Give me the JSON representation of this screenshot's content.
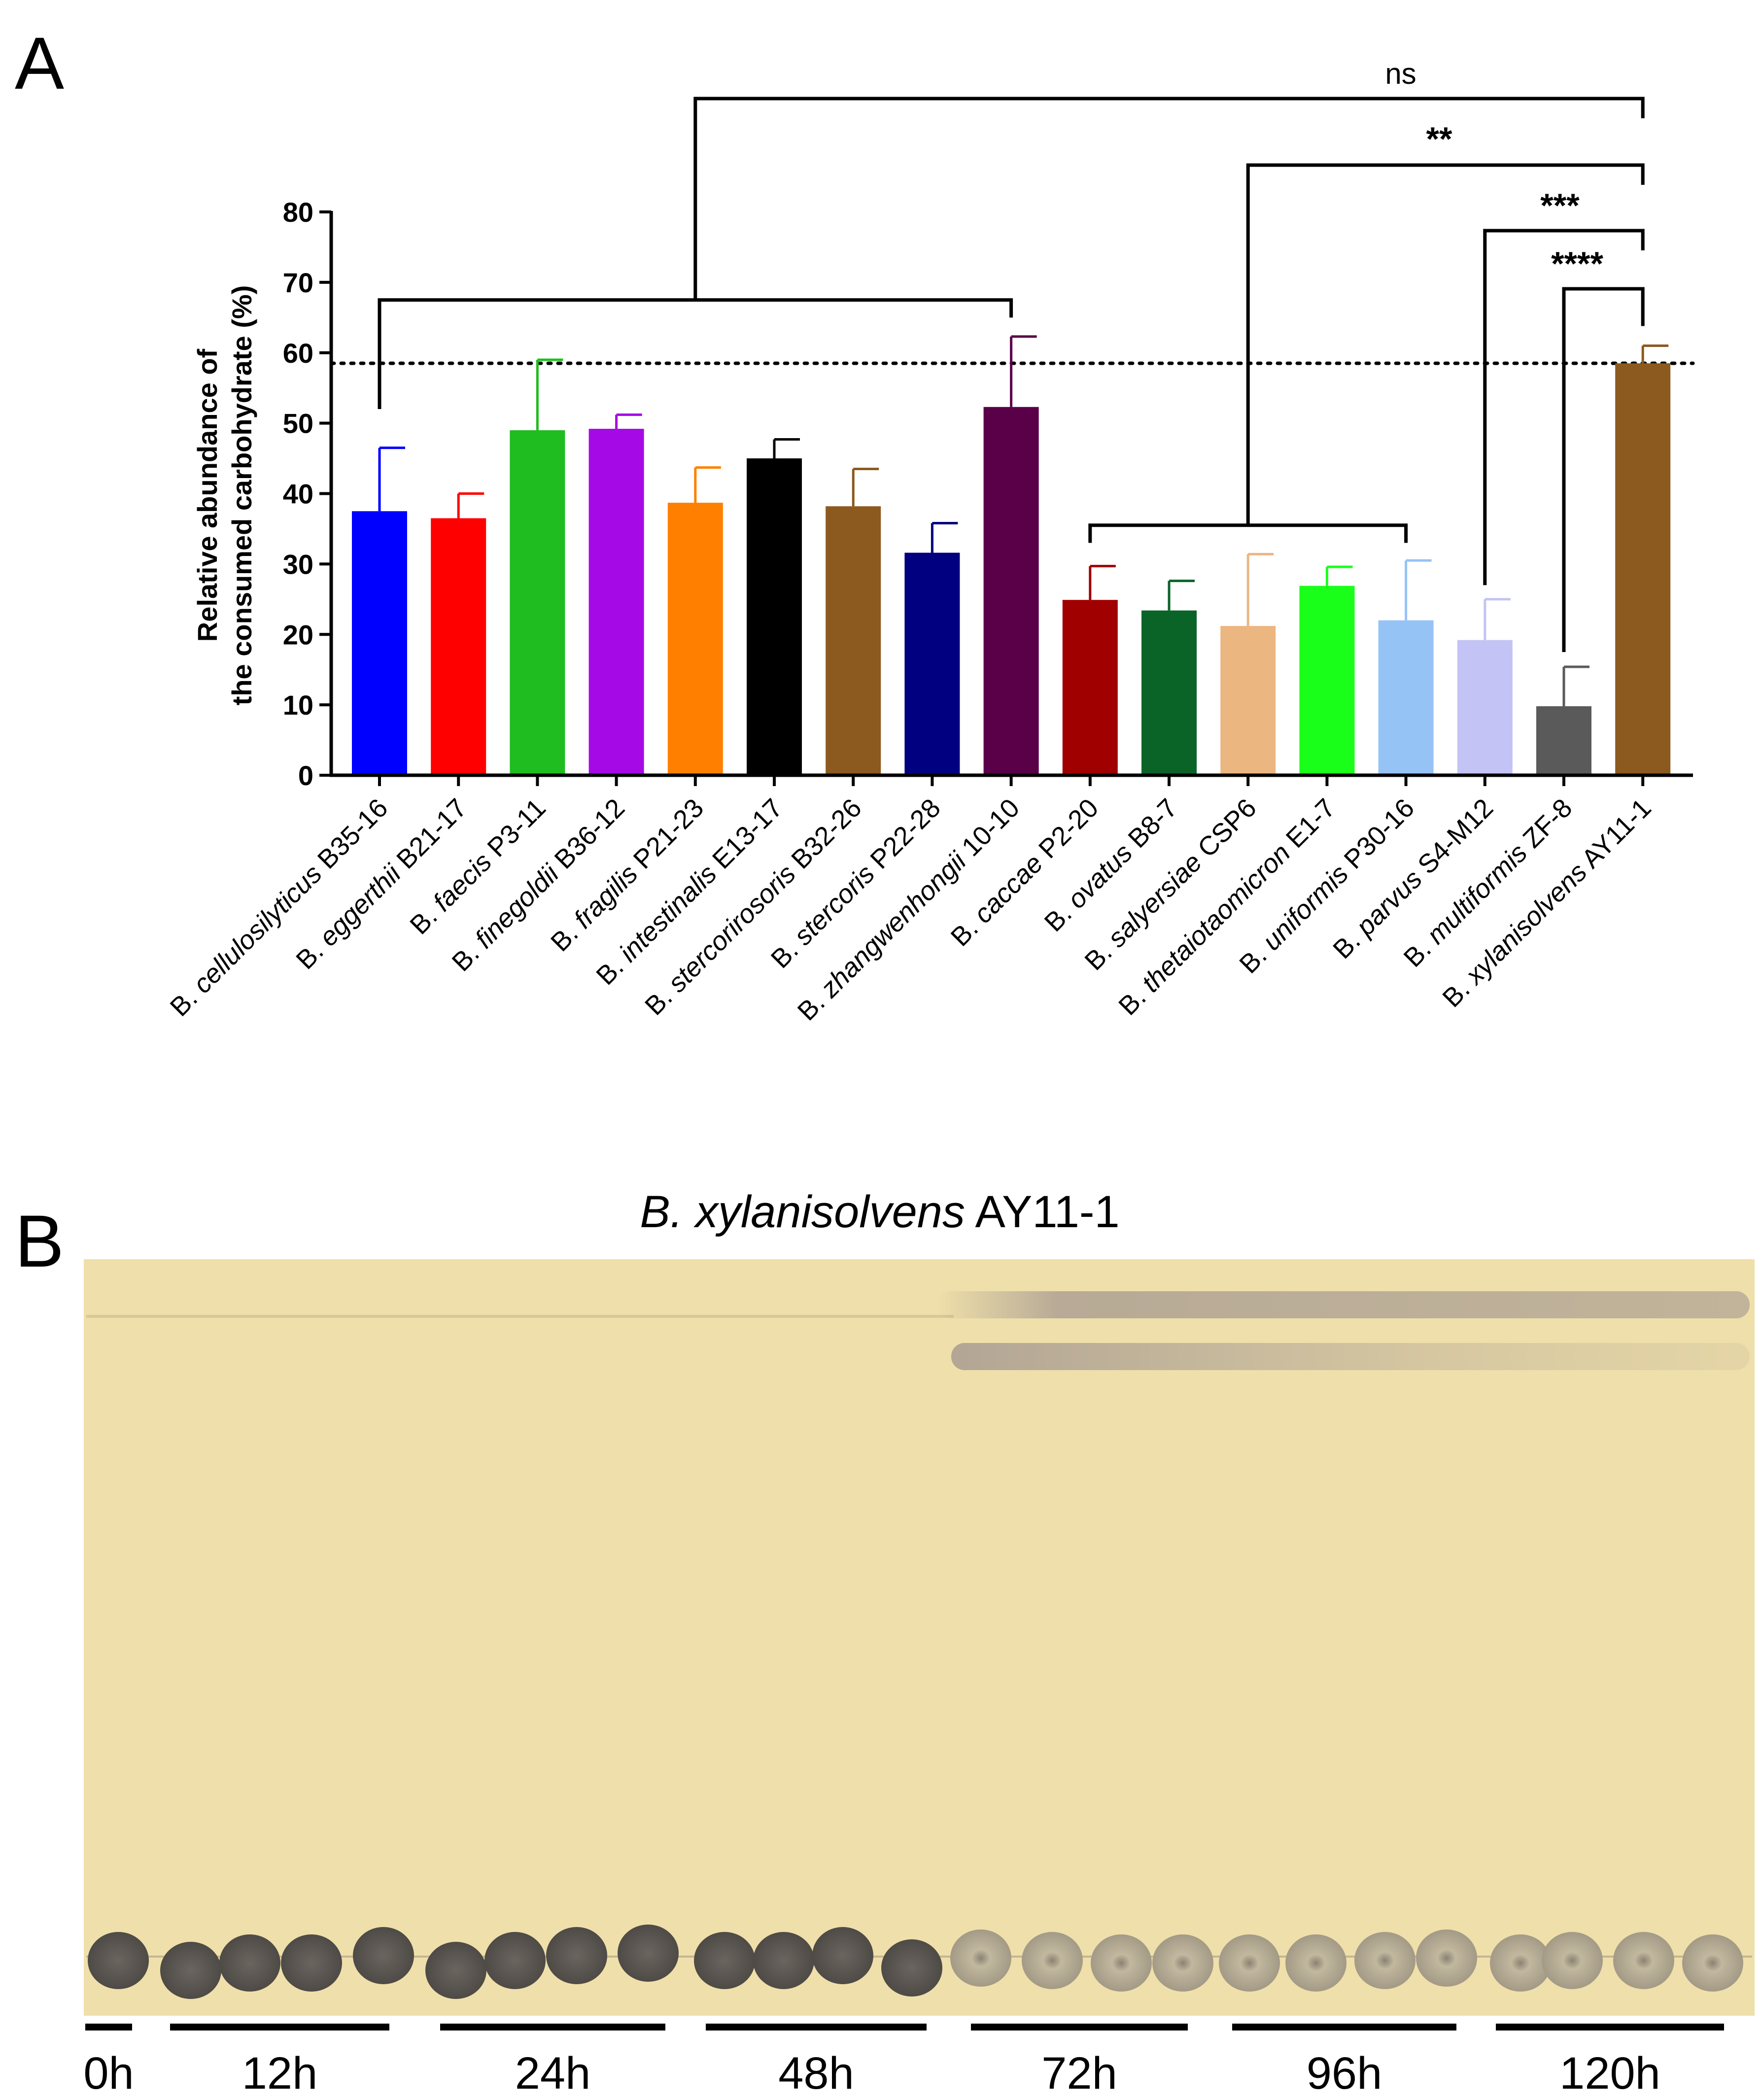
{
  "panels": {
    "a_letter": "A",
    "b_letter": "B"
  },
  "chart_data": {
    "type": "bar",
    "ylabel_line1": "Relative abundance of",
    "ylabel_line2": "the consumed carbohydrate (%)",
    "ylim": [
      0,
      80
    ],
    "yticks": [
      0,
      10,
      20,
      30,
      40,
      50,
      60,
      70,
      80
    ],
    "reference_line": 58.5,
    "categories": [
      {
        "genus": "B.",
        "species": "cellulosilyticus",
        "strain": "B35-16",
        "value": 37.5,
        "error": 9.0,
        "color": "#0000ff"
      },
      {
        "genus": "B.",
        "species": "eggerthii",
        "strain": "B21-17",
        "value": 36.5,
        "error": 3.5,
        "color": "#ff0000"
      },
      {
        "genus": "B.",
        "species": "faecis",
        "strain": "P3-11",
        "value": 49.0,
        "error": 10.0,
        "color": "#1fbd1f"
      },
      {
        "genus": "B.",
        "species": "finegoldii",
        "strain": "B36-12",
        "value": 49.2,
        "error": 2.0,
        "color": "#a50ae6"
      },
      {
        "genus": "B.",
        "species": "fragilis",
        "strain": "P21-23",
        "value": 38.7,
        "error": 5.0,
        "color": "#ff8000"
      },
      {
        "genus": "B.",
        "species": "intestinalis",
        "strain": "E13-17",
        "value": 45.0,
        "error": 2.7,
        "color": "#000000"
      },
      {
        "genus": "B.",
        "species": "stercorirosoris",
        "strain": "B32-26",
        "value": 38.2,
        "error": 5.3,
        "color": "#8c5a1e"
      },
      {
        "genus": "B.",
        "species": "stercoris",
        "strain": "P22-28",
        "value": 31.6,
        "error": 4.2,
        "color": "#000080"
      },
      {
        "genus": "B.",
        "species": "zhangwenhongii",
        "strain": "10-10",
        "value": 52.3,
        "error": 10.0,
        "color": "#5a0048"
      },
      {
        "genus": "B.",
        "species": "caccae",
        "strain": "P2-20",
        "value": 24.9,
        "error": 4.8,
        "color": "#a00000"
      },
      {
        "genus": "B.",
        "species": "ovatus",
        "strain": "B8-7",
        "value": 23.4,
        "error": 4.2,
        "color": "#0a6428"
      },
      {
        "genus": "B.",
        "species": "salyersiae",
        "strain": "CSP6",
        "value": 21.2,
        "error": 10.2,
        "color": "#ecb681"
      },
      {
        "genus": "B.",
        "species": "thetaiotaomicron",
        "strain": "E1-7",
        "value": 26.9,
        "error": 2.7,
        "color": "#1aff1a"
      },
      {
        "genus": "B.",
        "species": "uniformis",
        "strain": "P30-16",
        "value": 22.0,
        "error": 8.5,
        "color": "#96c3f5"
      },
      {
        "genus": "B.",
        "species": "parvus",
        "strain": "S4-M12",
        "value": 19.2,
        "error": 5.8,
        "color": "#c3c3f5"
      },
      {
        "genus": "B.",
        "species": "multiformis",
        "strain": "ZF-8",
        "value": 9.8,
        "error": 5.6,
        "color": "#5a5a5a"
      },
      {
        "genus": "B.",
        "species": "xylanisolvens",
        "strain": "AY11-1",
        "value": 58.5,
        "error": 2.5,
        "color": "#8c5a1e"
      }
    ],
    "significance": [
      {
        "label": "ns"
      },
      {
        "label": "**"
      },
      {
        "label": "***"
      },
      {
        "label": "****"
      }
    ]
  },
  "tlc": {
    "title_genus": "B. xylanisolvens",
    "title_strain": " AY11-1",
    "time_labels": [
      "0h",
      "12h",
      "24h",
      "48h",
      "72h",
      "96h",
      "120h"
    ],
    "plate_color": "#efdfaa",
    "spot_color_dark": "#5f5a55",
    "spot_color_light": "#a9a090"
  }
}
